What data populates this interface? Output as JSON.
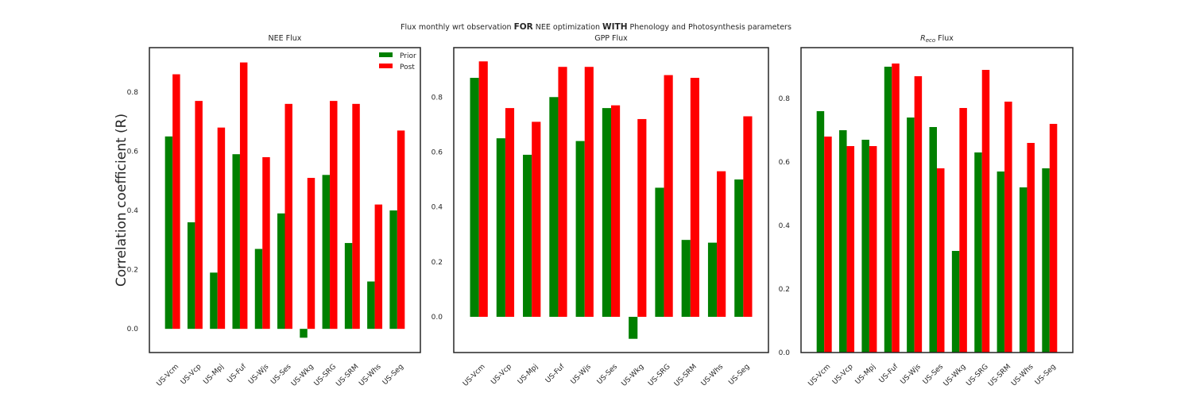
{
  "figure": {
    "title_parts": [
      "Flux monthly wrt observation ",
      "FOR",
      " NEE optimization ",
      "WITH",
      " Phenology and Photosynthesis parameters"
    ]
  },
  "colors": {
    "prior": "#008000",
    "post": "#ff0000",
    "axes": "#262626"
  },
  "chart_data": [
    {
      "type": "bar",
      "title": "NEE Flux",
      "ylabel": "Correlation coefficient (R)",
      "ylim": [
        -0.08,
        0.95
      ],
      "yticks": [
        "0.0",
        "0.2",
        "0.4",
        "0.6",
        "0.8"
      ],
      "categories": [
        "US-Vcm",
        "US-Vcp",
        "US-Mpj",
        "US-Fuf",
        "US-Wjs",
        "US-Ses",
        "US-Wkg",
        "US-SRG",
        "US-SRM",
        "US-Whs",
        "US-Seg"
      ],
      "series": [
        {
          "name": "Prior",
          "values": [
            0.65,
            0.36,
            0.19,
            0.59,
            0.27,
            0.39,
            -0.03,
            0.52,
            0.29,
            0.16,
            0.4
          ]
        },
        {
          "name": "Post",
          "values": [
            0.86,
            0.77,
            0.68,
            0.9,
            0.58,
            0.76,
            0.51,
            0.77,
            0.76,
            0.42,
            0.67
          ]
        }
      ],
      "legend": "top-right",
      "grid": false
    },
    {
      "type": "bar",
      "title": "GPP Flux",
      "ylim": [
        -0.13,
        0.98
      ],
      "yticks": [
        "0.0",
        "0.2",
        "0.4",
        "0.6",
        "0.8"
      ],
      "categories": [
        "US-Vcm",
        "US-Vcp",
        "US-Mpj",
        "US-Fuf",
        "US-Wjs",
        "US-Ses",
        "US-Wkg",
        "US-SRG",
        "US-SRM",
        "US-Whs",
        "US-Seg"
      ],
      "series": [
        {
          "name": "Prior",
          "values": [
            0.87,
            0.65,
            0.59,
            0.8,
            0.64,
            0.76,
            -0.08,
            0.47,
            0.28,
            0.27,
            0.5
          ]
        },
        {
          "name": "Post",
          "values": [
            0.93,
            0.76,
            0.71,
            0.91,
            0.91,
            0.77,
            0.72,
            0.88,
            0.87,
            0.53,
            0.73
          ]
        }
      ],
      "grid": false
    },
    {
      "type": "bar",
      "title_base": "R",
      "title_sub": "eco",
      "title_rest": " Flux",
      "ylim": [
        0.0,
        0.96
      ],
      "yticks": [
        "0.0",
        "0.2",
        "0.4",
        "0.6",
        "0.8"
      ],
      "categories": [
        "US-Vcm",
        "US-Vcp",
        "US-Mpj",
        "US-Fuf",
        "US-Wjs",
        "US-Ses",
        "US-Wkg",
        "US-SRG",
        "US-SRM",
        "US-Whs",
        "US-Seg"
      ],
      "series": [
        {
          "name": "Prior",
          "values": [
            0.76,
            0.7,
            0.67,
            0.9,
            0.74,
            0.71,
            0.32,
            0.63,
            0.57,
            0.52,
            0.58
          ]
        },
        {
          "name": "Post",
          "values": [
            0.68,
            0.65,
            0.65,
            0.91,
            0.87,
            0.58,
            0.77,
            0.89,
            0.79,
            0.66,
            0.72
          ]
        }
      ],
      "grid": false
    }
  ]
}
